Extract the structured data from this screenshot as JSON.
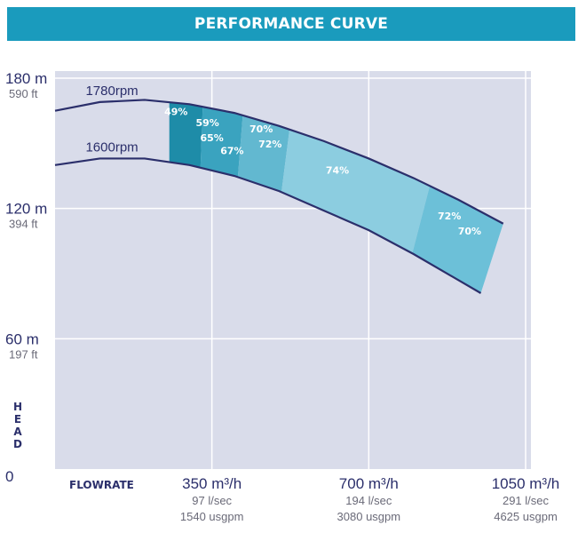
{
  "title": "PERFORMANCE CURVE",
  "chart_data": {
    "type": "line",
    "title": "PERFORMANCE CURVE",
    "xlabel": "FLOWRATE",
    "ylabel": "HEAD",
    "xlim": [
      0,
      1050
    ],
    "ylim": [
      0,
      180
    ],
    "grid": true,
    "y_ticks": [
      {
        "value": 180,
        "label": "180 m",
        "sub": "590 ft"
      },
      {
        "value": 120,
        "label": "120 m",
        "sub": "394 ft"
      },
      {
        "value": 60,
        "label": "60 m",
        "sub": "197 ft"
      },
      {
        "value": 0,
        "label": "0",
        "sub": ""
      }
    ],
    "x_ticks": [
      {
        "value": 350,
        "label": "350 m³/h",
        "sub1": "97 l/sec",
        "sub2": "1540 usgpm"
      },
      {
        "value": 700,
        "label": "700 m³/h",
        "sub1": "194 l/sec",
        "sub2": "3080 usgpm"
      },
      {
        "value": 1050,
        "label": "1050 m³/h",
        "sub1": "291 l/sec",
        "sub2": "4625 usgpm"
      }
    ],
    "series": [
      {
        "name": "1780rpm",
        "x": [
          0,
          100,
          200,
          300,
          400,
          500,
          600,
          700,
          800,
          900,
          1000
        ],
        "y": [
          165,
          169,
          170,
          168,
          164,
          158,
          151,
          143,
          134,
          124,
          113
        ]
      },
      {
        "name": "1600rpm",
        "x": [
          0,
          100,
          200,
          300,
          400,
          500,
          600,
          700,
          800,
          900,
          950
        ],
        "y": [
          140,
          143,
          143,
          140,
          135,
          128,
          119,
          110,
          99,
          87,
          81
        ]
      }
    ],
    "efficiency_labels": [
      {
        "text": "49%",
        "x": 270,
        "y": 163
      },
      {
        "text": "59%",
        "x": 340,
        "y": 158
      },
      {
        "text": "65%",
        "x": 350,
        "y": 151
      },
      {
        "text": "67%",
        "x": 395,
        "y": 145
      },
      {
        "text": "70%",
        "x": 460,
        "y": 155
      },
      {
        "text": "72%",
        "x": 480,
        "y": 148
      },
      {
        "text": "74%",
        "x": 630,
        "y": 136
      },
      {
        "text": "72%",
        "x": 880,
        "y": 115
      },
      {
        "text": "70%",
        "x": 925,
        "y": 108
      }
    ]
  }
}
